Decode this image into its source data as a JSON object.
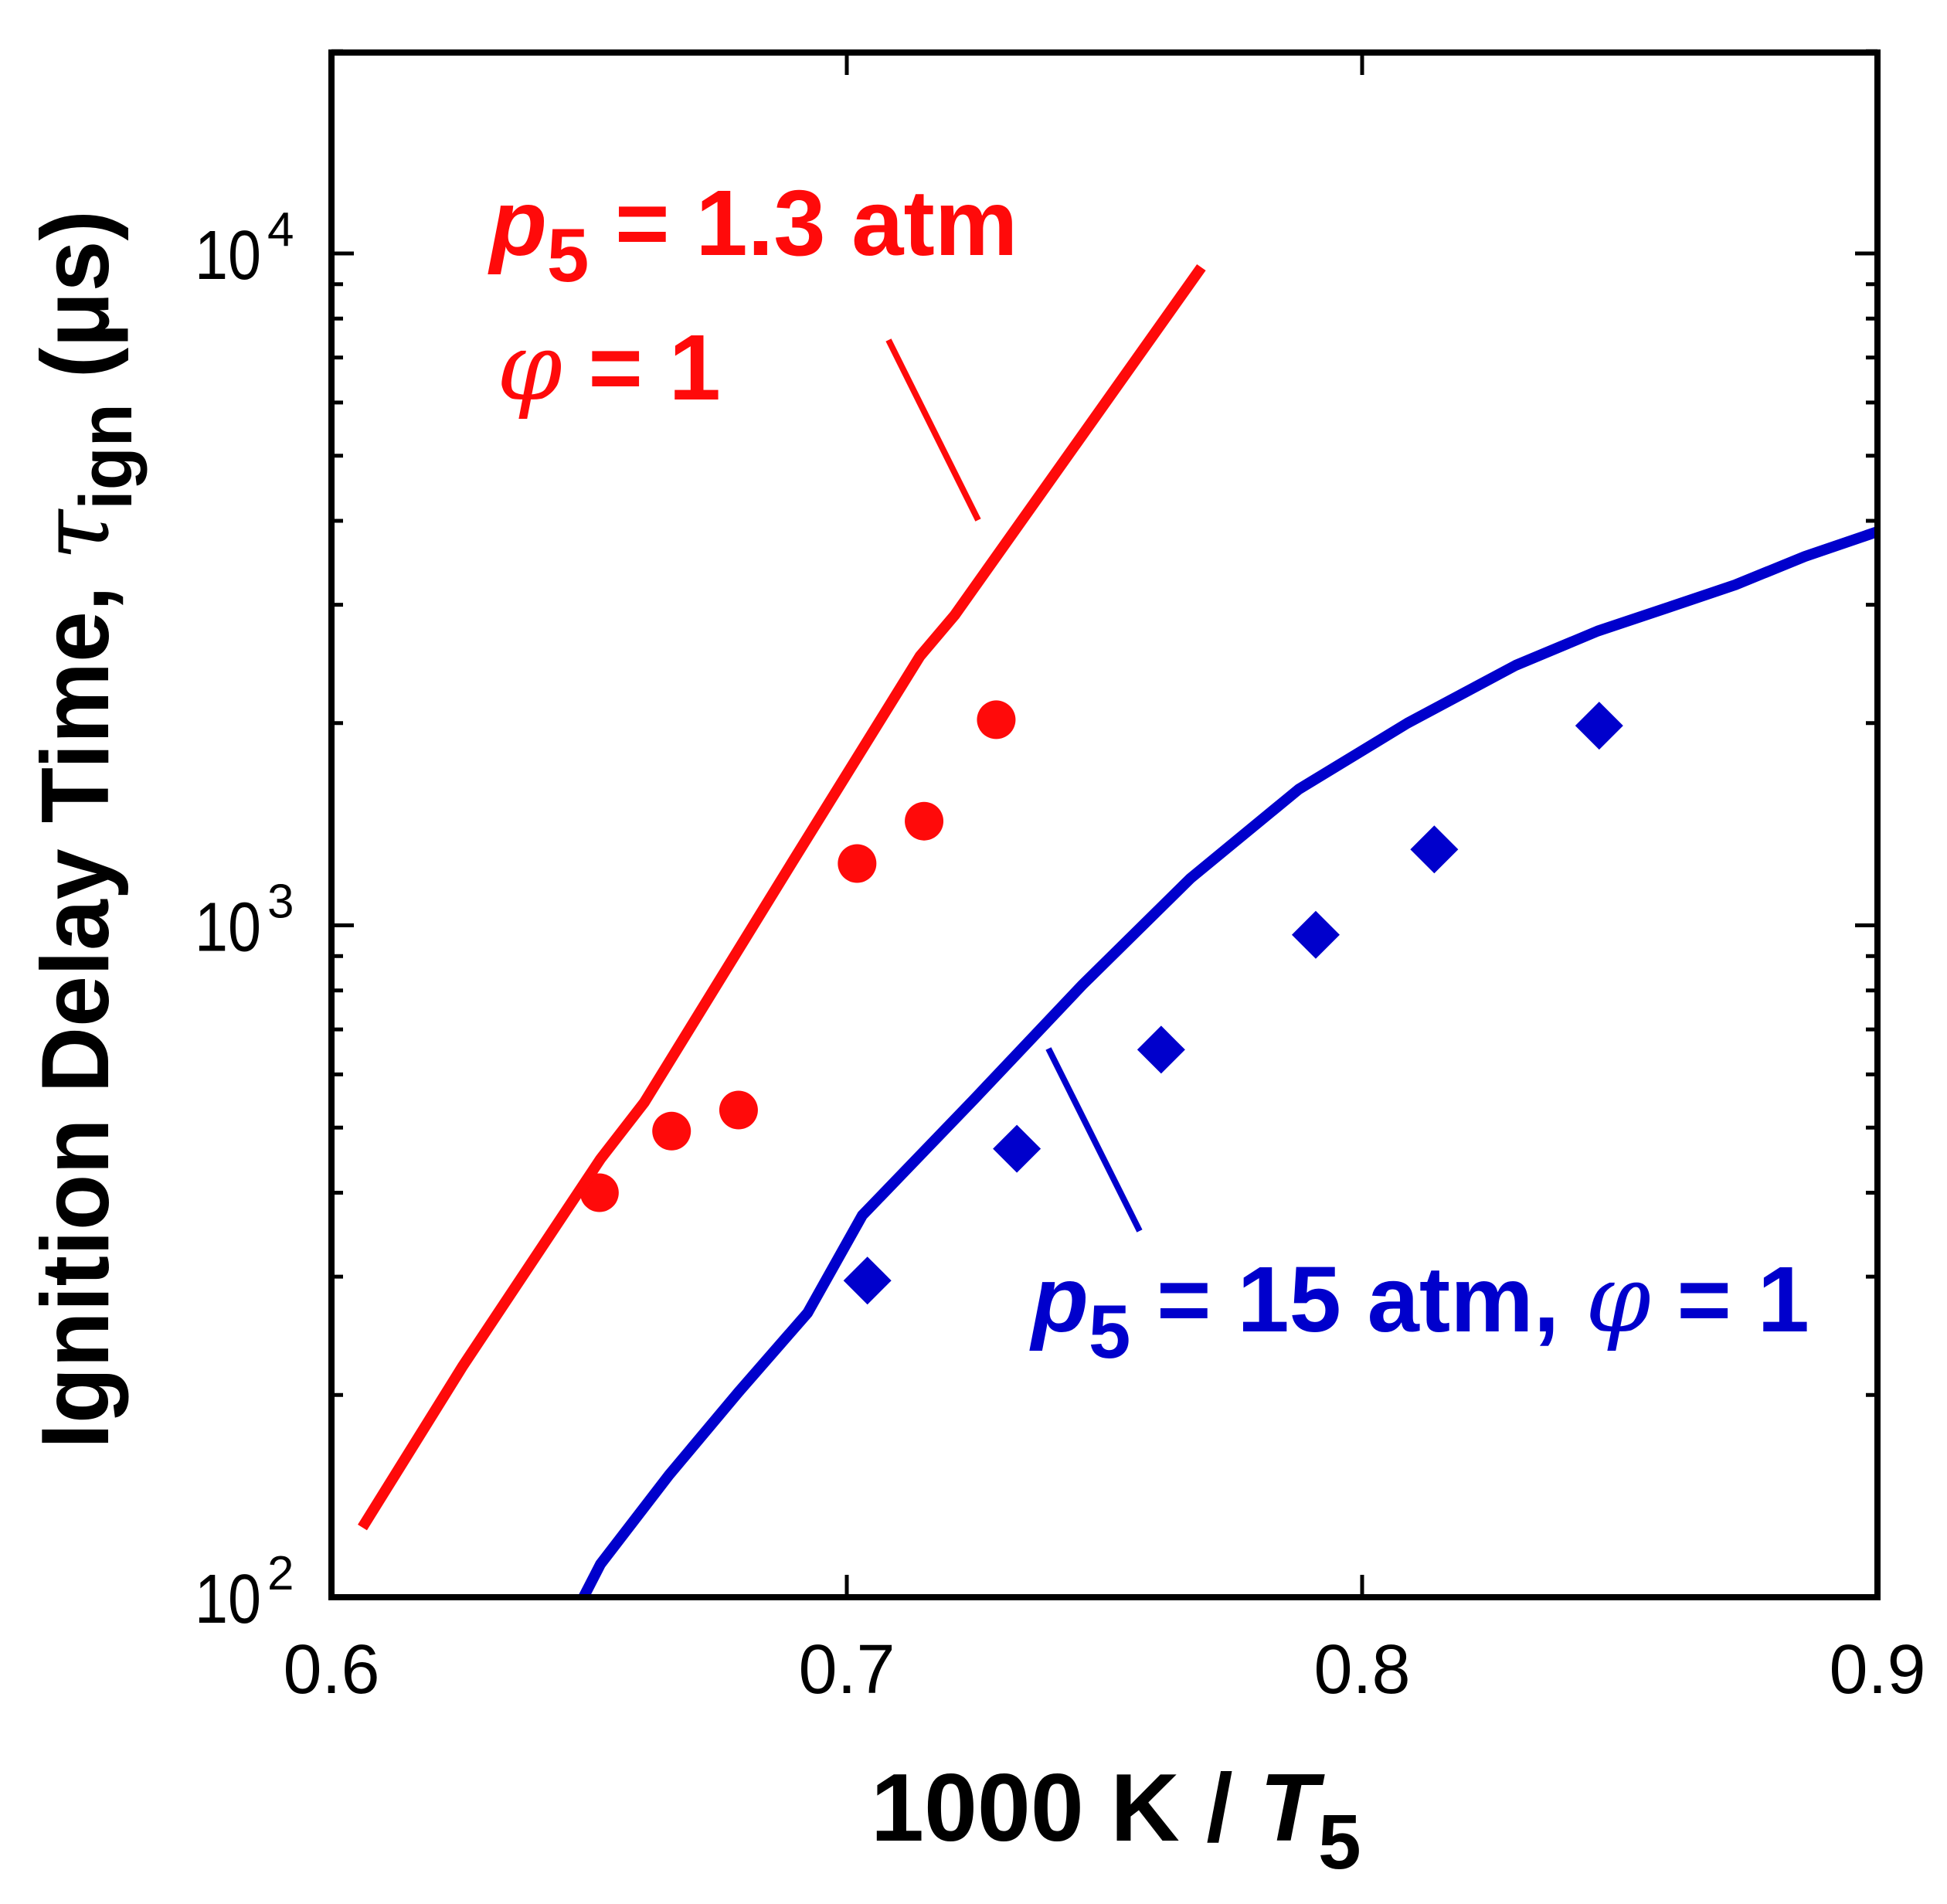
{
  "colors": {
    "series_1_3atm": "#ff0a0a",
    "series_15atm": "#0000cc",
    "axis": "#000000"
  },
  "chart_data": {
    "type": "scatter",
    "title": "",
    "xlabel": {
      "main": "1000 K / ",
      "var": "T",
      "sub": "5"
    },
    "ylabel": {
      "main": "Ignition Delay Time, ",
      "var": "τ",
      "sub": "ign",
      "unit": " (μs)"
    },
    "xlim": [
      0.6,
      0.9
    ],
    "ylim": [
      100,
      20000
    ],
    "yscale": "log",
    "grid": false,
    "x_ticks": [
      "0.6",
      "0.7",
      "0.8",
      "0.9"
    ],
    "x_tick_values": [
      0.6,
      0.7,
      0.8,
      0.9
    ],
    "y_ticks": [
      {
        "base": "10",
        "exp": "2",
        "value": 100
      },
      {
        "base": "10",
        "exp": "3",
        "value": 1000
      },
      {
        "base": "10",
        "exp": "4",
        "value": 10000
      }
    ],
    "series": [
      {
        "name": "p5 = 1.3 atm, phi = 1 (experiment)",
        "kind": "markers",
        "marker": "circle",
        "color": "#ff0a0a",
        "x": [
          0.652,
          0.666,
          0.679,
          0.702,
          0.715,
          0.729
        ],
        "y": [
          400,
          494,
          531,
          1236,
          1429,
          2023
        ]
      },
      {
        "name": "p5 = 1.3 atm, phi = 1 (model)",
        "kind": "line",
        "color": "#ff0a0a",
        "x": [
          0.606,
          0.6255,
          0.6522,
          0.6607,
          0.6895,
          0.7142,
          0.7209,
          0.7688
        ],
        "y": [
          127,
          221,
          449,
          545,
          1245,
          2515,
          2893,
          9535
        ]
      },
      {
        "name": "p5 = 15 atm, phi = 1 (experiment)",
        "kind": "markers",
        "marker": "diamond",
        "color": "#0000cc",
        "x": [
          0.704,
          0.733,
          0.761,
          0.791,
          0.814,
          0.846
        ],
        "y": [
          296,
          465,
          653,
          968,
          1297,
          1982
        ]
      },
      {
        "name": "p5 = 15 atm, phi = 1 (model)",
        "kind": "line",
        "color": "#0000cc",
        "x": [
          0.6489,
          0.6522,
          0.6655,
          0.679,
          0.6924,
          0.703,
          0.7246,
          0.7457,
          0.7667,
          0.7877,
          0.8088,
          0.8298,
          0.8457,
          0.8591,
          0.8724,
          0.8859,
          0.9
        ],
        "y": [
          100,
          112,
          152,
          202,
          265,
          370,
          550,
          815,
          1175,
          1594,
          2000,
          2438,
          2741,
          2967,
          3212,
          3540,
          3855
        ]
      }
    ],
    "annotations": {
      "low_pressure": {
        "line1": {
          "var": "p",
          "sub": "5",
          "rest": " = 1.3 atm"
        },
        "line2": {
          "var": "φ",
          "rest": " = 1"
        }
      },
      "high_pressure": {
        "var": "p",
        "sub": "5",
        "rest": " = 15 atm, ",
        "var2": "φ",
        "rest2": " = 1"
      }
    }
  }
}
